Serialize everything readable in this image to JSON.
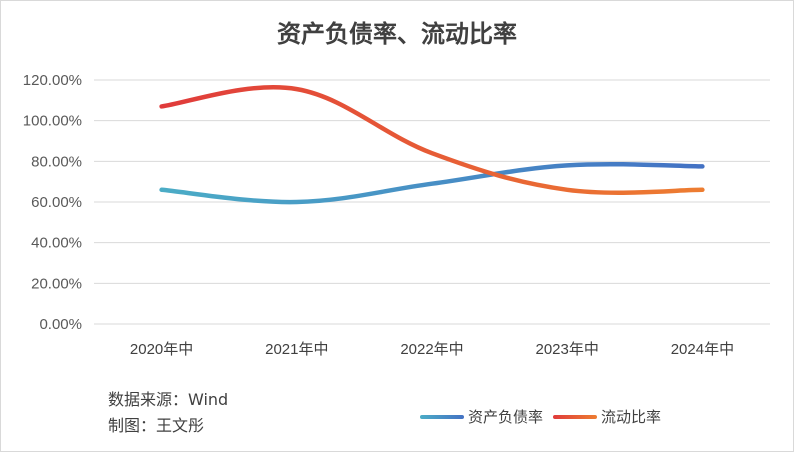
{
  "source_note": "数据来源：Wind",
  "author_note": "制图：王文彤",
  "colors": {
    "debt_ratio_start": "#4bacc6",
    "debt_ratio_end": "#4472c4",
    "current_ratio_start": "#e03b3b",
    "current_ratio_end": "#ed7d31",
    "grid": "#d9d9d9"
  },
  "chart_data": {
    "type": "line",
    "title": "资产负债率、流动比率",
    "categories": [
      "2020年中",
      "2021年中",
      "2022年中",
      "2023年中",
      "2024年中"
    ],
    "series": [
      {
        "name": "资产负债率",
        "values": [
          66.0,
          60.0,
          69.0,
          78.0,
          77.5
        ]
      },
      {
        "name": "流动比率",
        "values": [
          107.0,
          115.5,
          84.0,
          66.0,
          66.0
        ]
      }
    ],
    "ylim": [
      0,
      120
    ],
    "yticks": [
      0,
      20,
      40,
      60,
      80,
      100,
      120
    ],
    "ytick_labels": [
      "0.00%",
      "20.00%",
      "40.00%",
      "60.00%",
      "80.00%",
      "100.00%",
      "120.00%"
    ],
    "grid": true,
    "smooth": true,
    "legend": "bottom-right"
  }
}
